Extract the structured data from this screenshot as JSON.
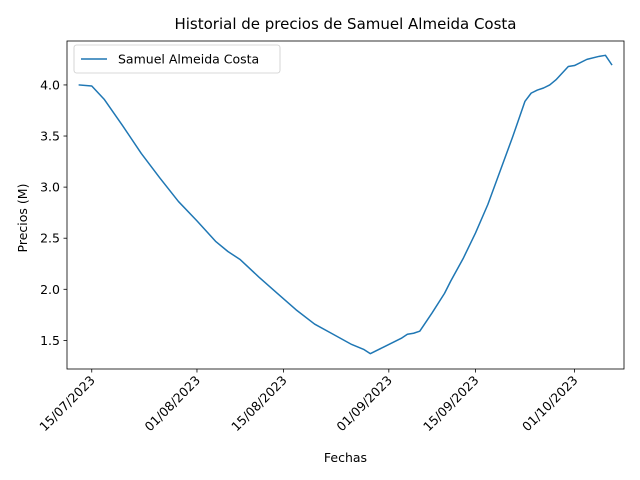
{
  "chart_data": {
    "type": "line",
    "title": "Historial de precios de Samuel Almeida Costa",
    "xlabel": "Fechas",
    "ylabel": "Precios (M)",
    "x_type": "date",
    "x_ticks": [
      "2023-07-15",
      "2023-08-01",
      "2023-08-15",
      "2023-09-01",
      "2023-09-15",
      "2023-10-01"
    ],
    "x_tick_labels": [
      "15/07/2023",
      "01/08/2023",
      "15/08/2023",
      "01/09/2023",
      "15/09/2023",
      "01/10/2023"
    ],
    "xlim": [
      "2023-07-11",
      "2023-10-09"
    ],
    "y_ticks": [
      1.5,
      2.0,
      2.5,
      3.0,
      3.5,
      4.0
    ],
    "y_tick_labels": [
      "1.5",
      "2.0",
      "2.5",
      "3.0",
      "3.5",
      "4.0"
    ],
    "ylim": [
      1.22,
      4.43
    ],
    "grid": false,
    "legend": "upper-left",
    "series": [
      {
        "name": "Samuel Almeida Costa",
        "color": "#1f77b4",
        "x": [
          "2023-07-13",
          "2023-07-15",
          "2023-07-17",
          "2023-07-20",
          "2023-07-23",
          "2023-07-26",
          "2023-07-29",
          "2023-08-01",
          "2023-08-04",
          "2023-08-06",
          "2023-08-08",
          "2023-08-11",
          "2023-08-14",
          "2023-08-17",
          "2023-08-20",
          "2023-08-23",
          "2023-08-26",
          "2023-08-28",
          "2023-08-29",
          "2023-08-31",
          "2023-09-03",
          "2023-09-04",
          "2023-09-05",
          "2023-09-06",
          "2023-09-08",
          "2023-09-10",
          "2023-09-11",
          "2023-09-13",
          "2023-09-15",
          "2023-09-17",
          "2023-09-19",
          "2023-09-21",
          "2023-09-23",
          "2023-09-24",
          "2023-09-25",
          "2023-09-26",
          "2023-09-27",
          "2023-09-28",
          "2023-09-30",
          "2023-10-01",
          "2023-10-03",
          "2023-10-05",
          "2023-10-06",
          "2023-10-07"
        ],
        "y": [
          4.0,
          3.99,
          3.86,
          3.6,
          3.33,
          3.09,
          2.86,
          2.67,
          2.47,
          2.37,
          2.29,
          2.12,
          1.96,
          1.8,
          1.66,
          1.56,
          1.46,
          1.41,
          1.37,
          1.43,
          1.52,
          1.56,
          1.57,
          1.59,
          1.77,
          1.96,
          2.08,
          2.3,
          2.55,
          2.83,
          3.16,
          3.49,
          3.84,
          3.92,
          3.95,
          3.97,
          4.0,
          4.05,
          4.18,
          4.19,
          4.25,
          4.28,
          4.29,
          4.2
        ]
      }
    ]
  }
}
